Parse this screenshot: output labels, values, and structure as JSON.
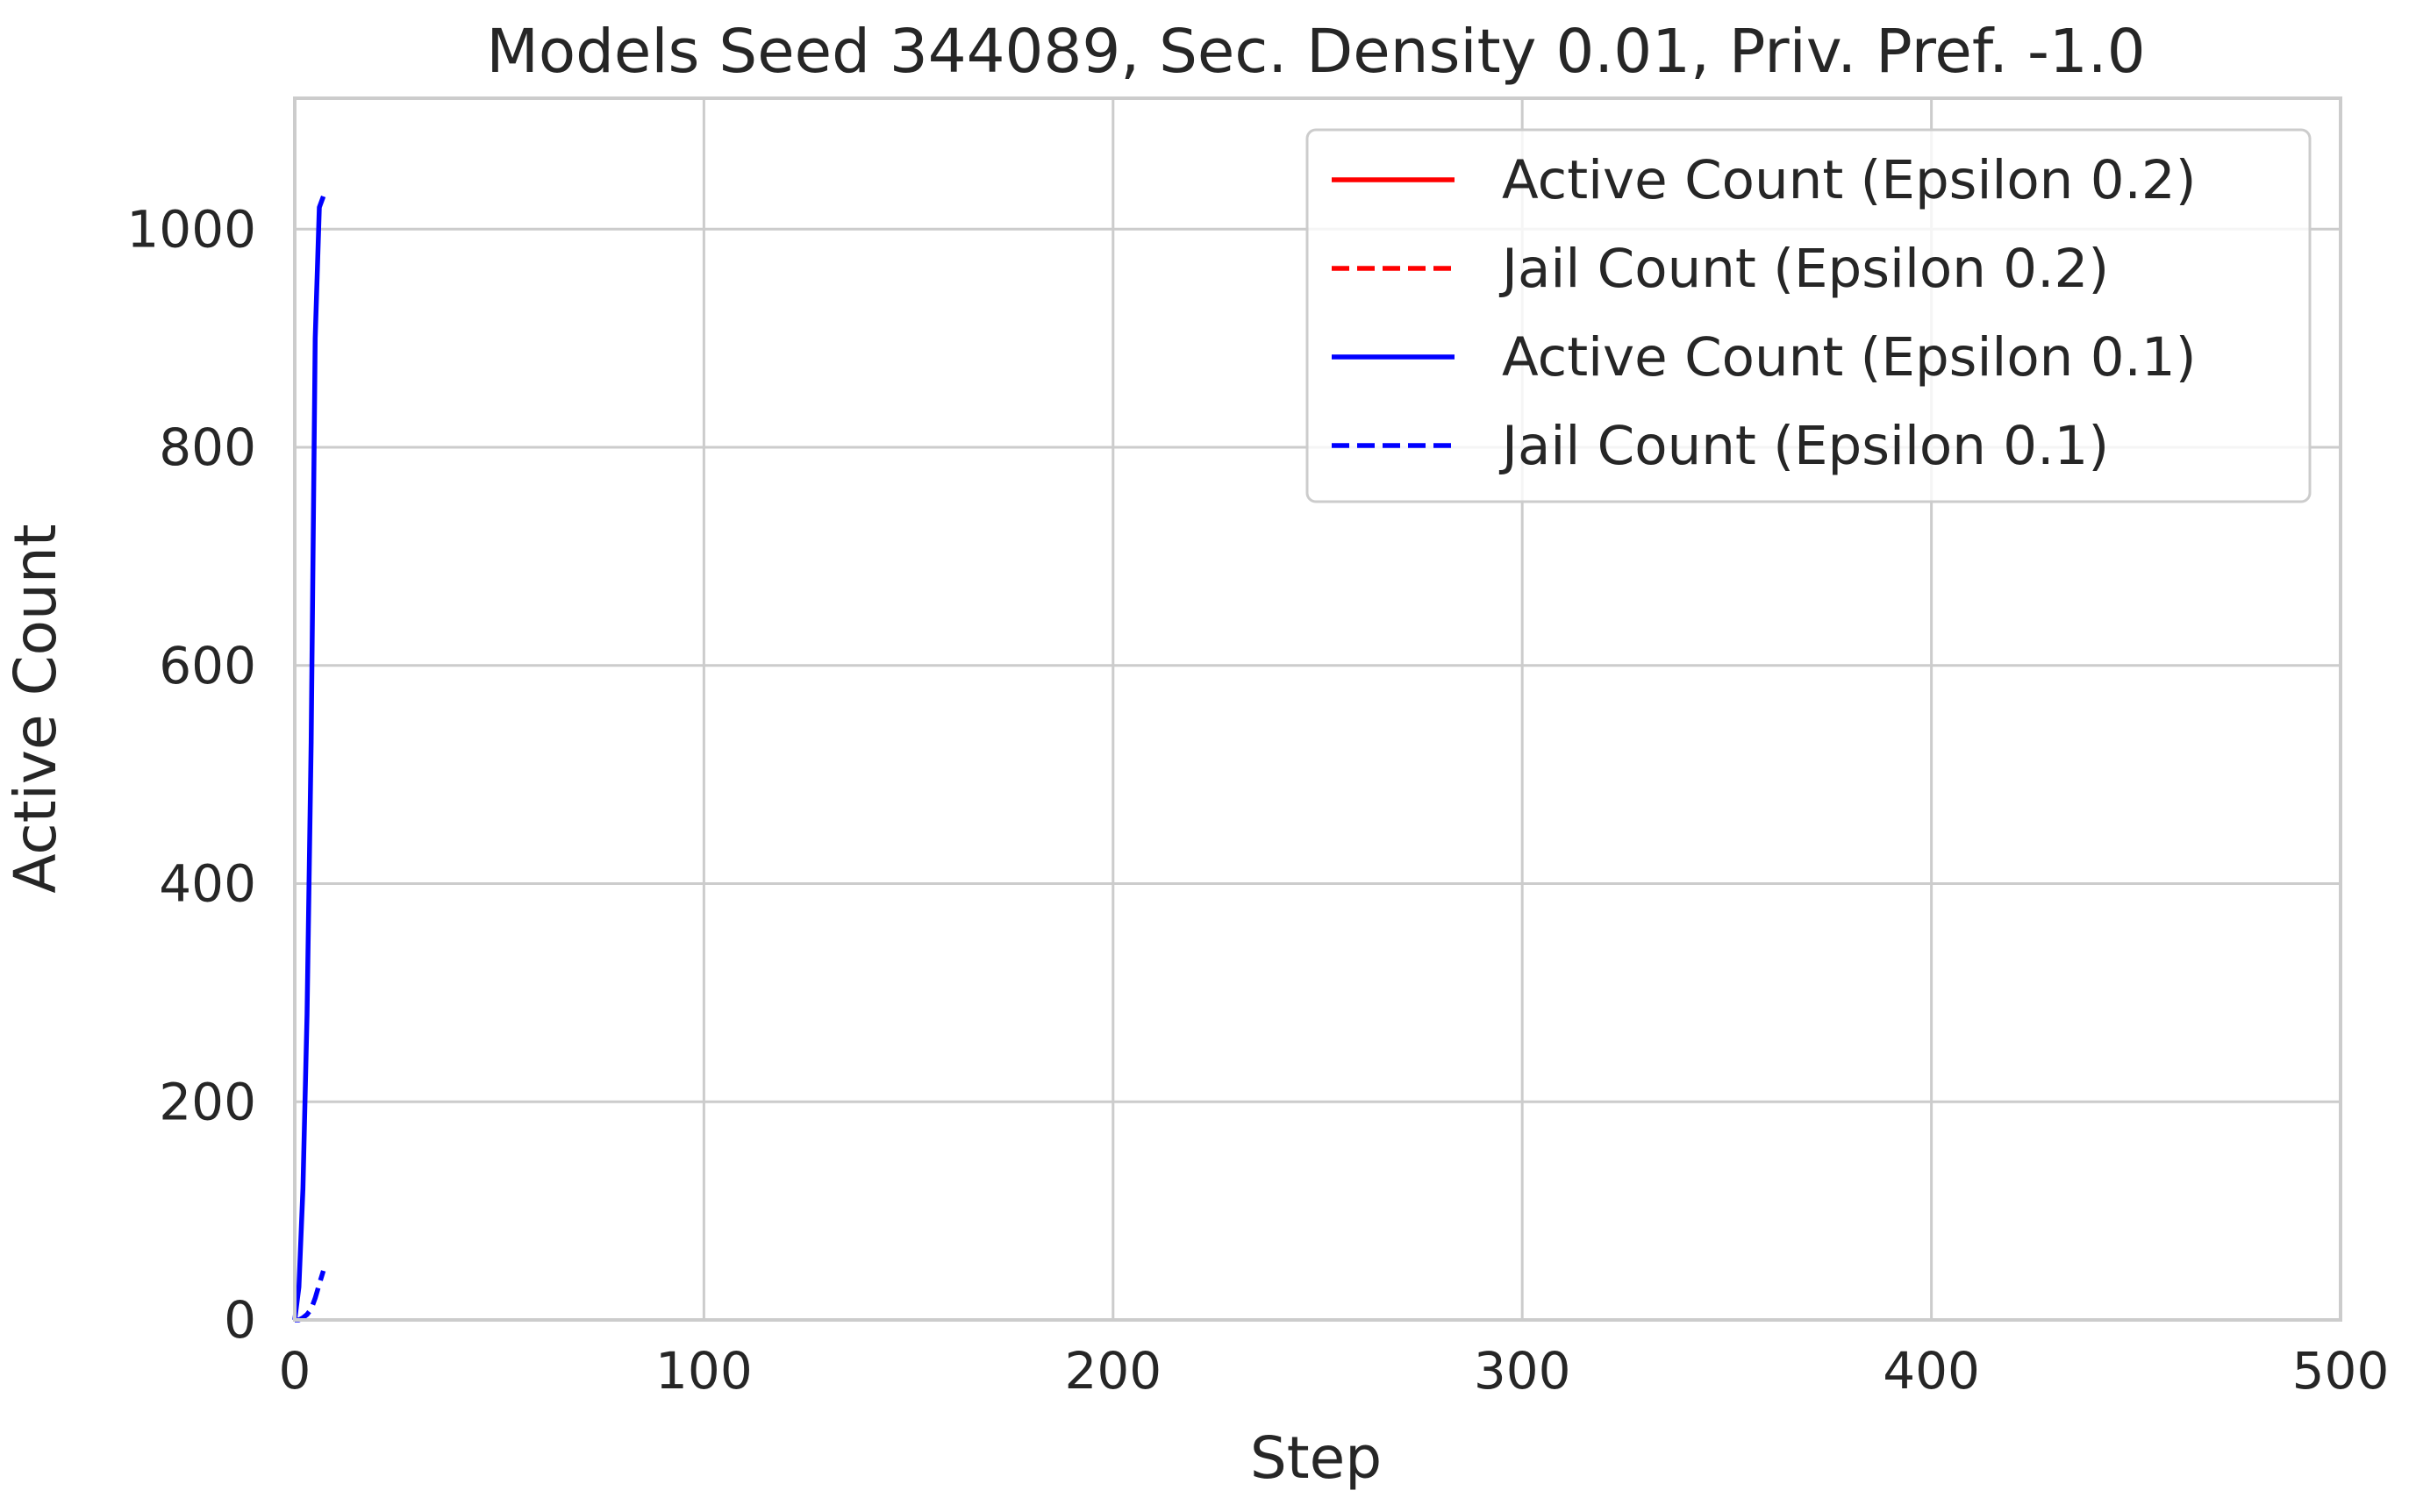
{
  "chart_data": {
    "type": "line",
    "title": "Models Seed 344089, Sec. Density 0.01, Priv. Pref. -1.0",
    "xlabel": "Step",
    "ylabel": "Active Count",
    "xlim": [
      0,
      500
    ],
    "ylim": [
      0,
      1120
    ],
    "xticks": [
      0,
      100,
      200,
      300,
      400,
      500
    ],
    "yticks": [
      0,
      200,
      400,
      600,
      800,
      1000
    ],
    "grid": true,
    "legend_position": "top-right",
    "series": [
      {
        "name": "Active Count (Epsilon 0.2)",
        "color": "#ff0000",
        "dash": "solid",
        "x": [],
        "y": []
      },
      {
        "name": "Jail Count (Epsilon 0.2)",
        "color": "#ff0000",
        "dash": "dashed",
        "x": [],
        "y": []
      },
      {
        "name": "Active Count (Epsilon 0.1)",
        "color": "#0000ff",
        "dash": "solid",
        "x": [
          0,
          1,
          2,
          3,
          4,
          5,
          6,
          7
        ],
        "y": [
          0,
          30,
          120,
          280,
          530,
          900,
          1020,
          1030
        ]
      },
      {
        "name": "Jail Count (Epsilon 0.1)",
        "color": "#0000ff",
        "dash": "dashed",
        "x": [
          0,
          1,
          2,
          3,
          4,
          5,
          6,
          7
        ],
        "y": [
          0,
          0,
          2,
          5,
          10,
          20,
          33,
          45
        ]
      }
    ]
  }
}
